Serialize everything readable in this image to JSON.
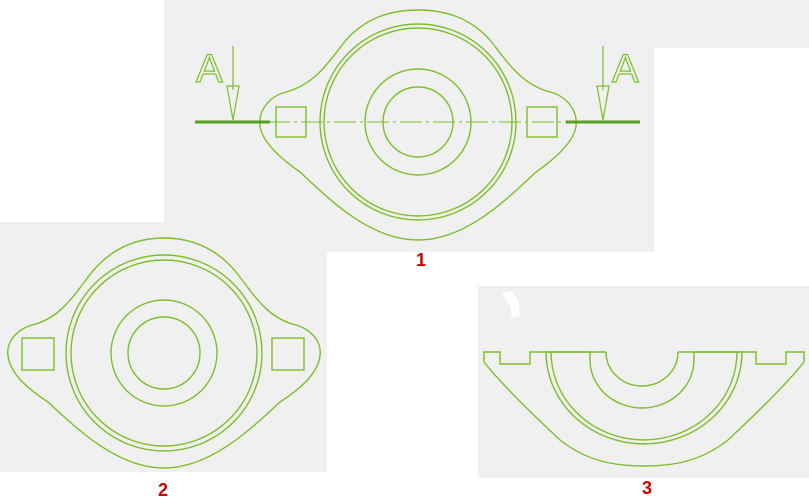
{
  "colors": {
    "line": "#7dbe2a",
    "section_line": "#5aa020",
    "label": "#cc0000",
    "panel": "#f0f0f0",
    "background": "#ffffff"
  },
  "figures": {
    "top": {
      "label": "1"
    },
    "bottom_left": {
      "label": "2"
    },
    "bottom_right": {
      "label": "3"
    }
  },
  "section_markers": {
    "left": {
      "letter": "A"
    },
    "right": {
      "letter": "A"
    }
  }
}
